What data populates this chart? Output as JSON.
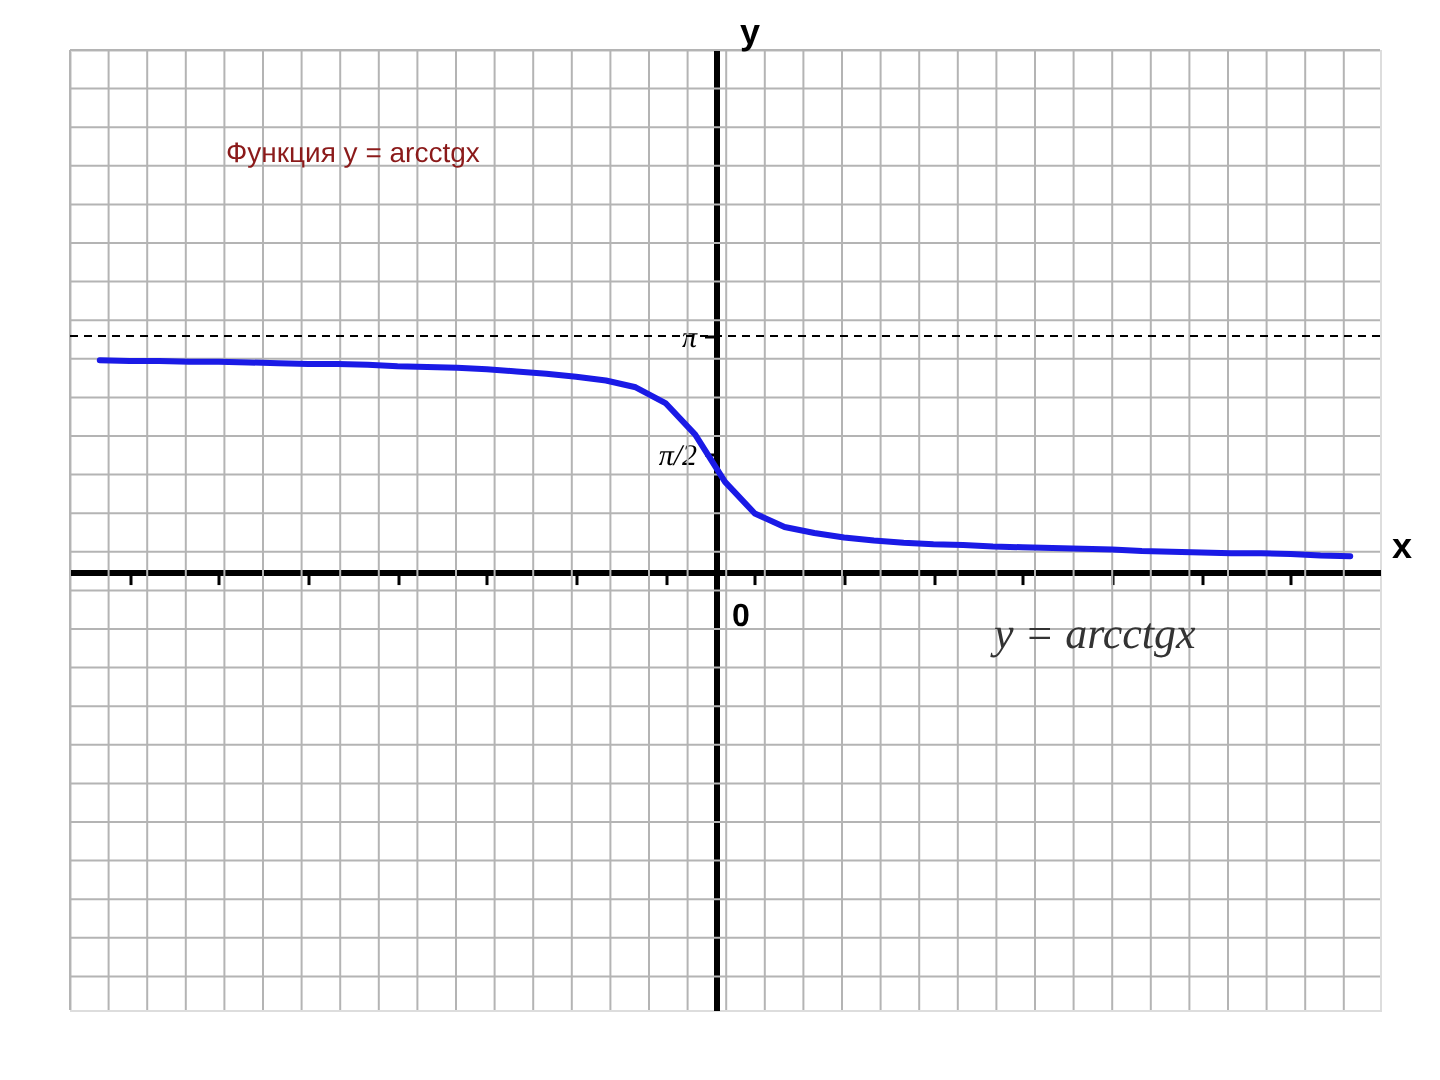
{
  "chart_data": {
    "type": "line",
    "title": "Функция y = arcctgx",
    "xlabel": "x",
    "ylabel": "y",
    "categories": [
      null,
      null,
      null,
      null,
      null,
      null,
      null,
      null,
      null,
      null,
      null,
      null,
      null,
      null,
      null,
      null,
      null,
      null,
      null,
      null,
      null,
      null,
      null,
      null,
      null,
      null,
      null,
      null,
      null,
      null,
      null,
      null,
      null,
      null,
      null,
      null,
      null,
      null,
      null,
      null,
      null,
      null,
      null
    ],
    "series": [
      {
        "color": "#1a1ae6",
        "values": [
          2.82,
          2.81,
          2.81,
          2.8,
          2.8,
          2.79,
          2.78,
          2.77,
          2.77,
          2.76,
          2.74,
          2.73,
          2.72,
          2.7,
          2.67,
          2.64,
          2.6,
          2.55,
          2.46,
          2.25,
          1.83,
          1.2,
          0.78,
          0.6,
          0.52,
          0.46,
          0.42,
          0.39,
          0.37,
          0.36,
          0.34,
          0.33,
          0.32,
          0.31,
          0.3,
          0.28,
          0.27,
          0.26,
          0.25,
          0.25,
          0.24,
          0.22,
          0.21
        ]
      }
    ],
    "ylim": [
      -5.83,
      6.95
    ],
    "yticks": [
      {
        "value": 1.5708,
        "label": "π/2"
      },
      {
        "value": 3.1416,
        "label": "π"
      }
    ],
    "ref_lines": [
      {
        "axis": "y",
        "value": 3.1416,
        "color": "#000000",
        "line_style": "dashed"
      }
    ],
    "annotations": [
      "0",
      "y = arcctgx"
    ],
    "grid": true,
    "marker": "none",
    "line_style": "solid"
  }
}
